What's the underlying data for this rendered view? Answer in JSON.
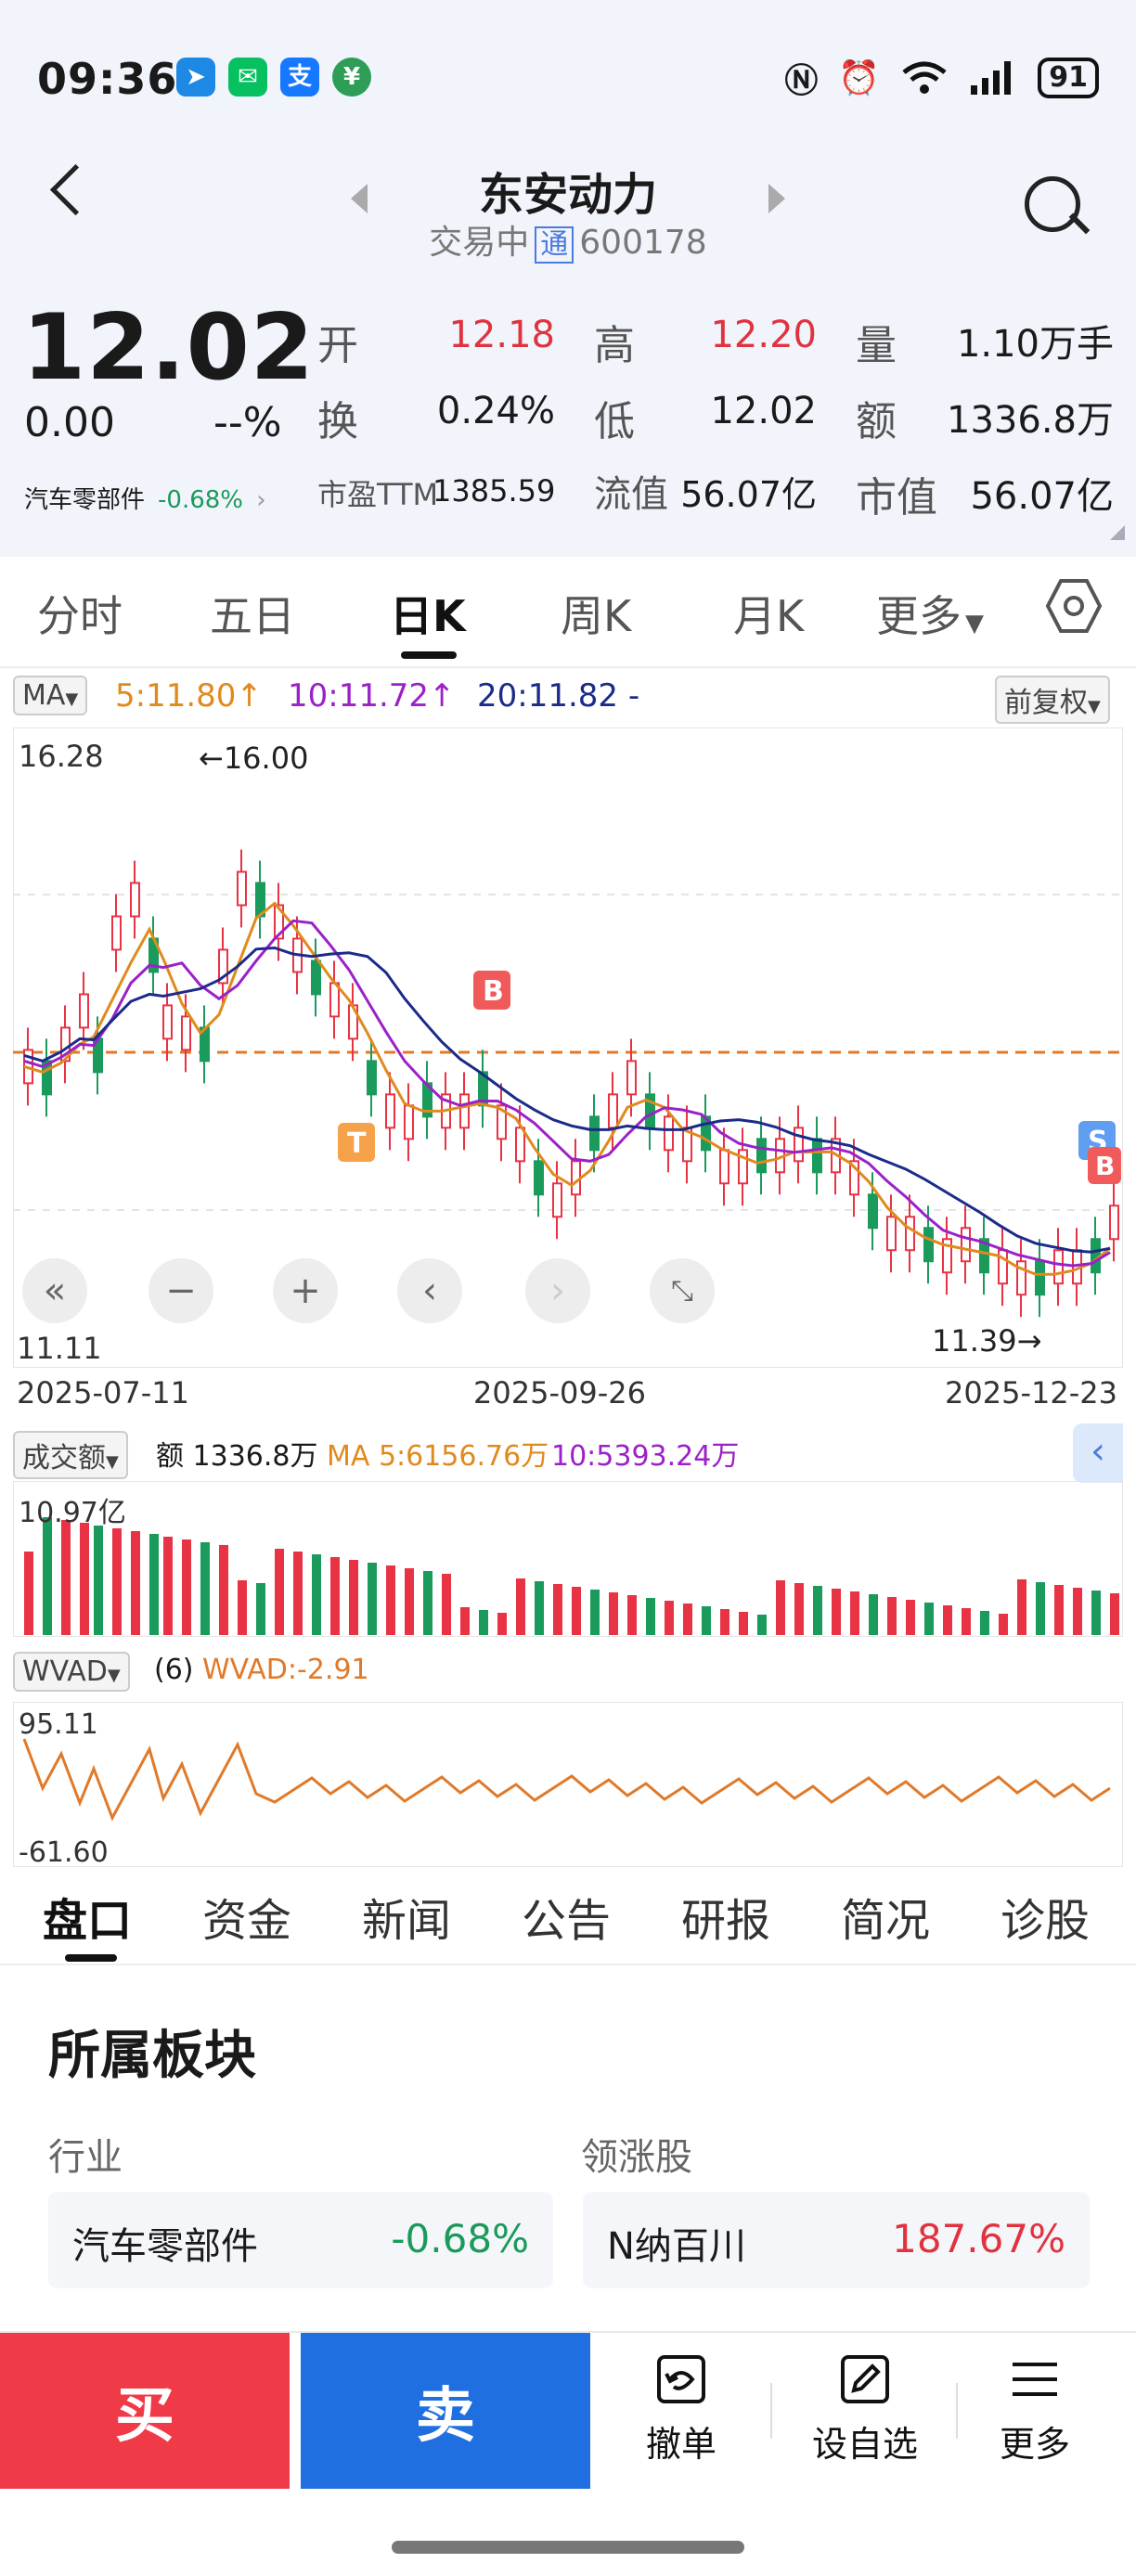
{
  "status": {
    "time": "09:36",
    "battery": "91",
    "apps": [
      {
        "icon": "paper-plane-app-icon",
        "glyph": "➤",
        "color": "#1e88e5"
      },
      {
        "icon": "wechat-app-icon",
        "glyph": "✉",
        "color": "#07c160"
      },
      {
        "icon": "alipay-app-icon",
        "glyph": "支",
        "color": "#1677ff"
      },
      {
        "icon": "bank-app-icon",
        "glyph": "¥",
        "color": "#2e9d57"
      }
    ]
  },
  "header": {
    "name": "东安动力",
    "trade_status": "交易中",
    "tong": "通",
    "code": "600178"
  },
  "quote": {
    "price": "12.02",
    "change": "0.00",
    "change_pct": "--%",
    "sector": "汽车零部件",
    "sector_change": "-0.68%",
    "fields": [
      {
        "label": "开",
        "value": "12.18",
        "color": "red"
      },
      {
        "label": "高",
        "value": "12.20",
        "color": "red"
      },
      {
        "label": "量",
        "value": "1.10万手",
        "color": "black"
      },
      {
        "label": "换",
        "value": "0.24%",
        "color": "black"
      },
      {
        "label": "低",
        "value": "12.02",
        "color": "black"
      },
      {
        "label": "额",
        "value": "1336.8万",
        "color": "black"
      },
      {
        "label": "市盈TTM",
        "value": "1385.59",
        "color": "black"
      },
      {
        "label": "流值",
        "value": "56.07亿",
        "color": "black"
      },
      {
        "label": "市值",
        "value": "56.07亿",
        "color": "black"
      }
    ]
  },
  "period_tabs": [
    "分时",
    "五日",
    "日K",
    "周K",
    "月K",
    "更多"
  ],
  "active_tab": "日K",
  "kline": {
    "indicator": "MA",
    "ma5": "5:11.80↑",
    "ma10": "10:11.72↑",
    "ma20": "20:11.82 -",
    "adjust": "前复权",
    "y_max": "16.28",
    "y_min": "11.11",
    "high_mark": "←16.00",
    "low_mark": "11.39→",
    "dates": [
      "2025-07-11",
      "2025-09-26",
      "2025-12-23"
    ],
    "markers": [
      "B",
      "T",
      "S",
      "B"
    ]
  },
  "volume": {
    "indicator": "成交额",
    "amount": "额 1336.8万",
    "ma5": "MA 5:6156.76万",
    "ma10": "10:5393.24万",
    "y_max": "10.97亿"
  },
  "wvad": {
    "indicator": "WVAD",
    "param": "(6)",
    "value": "WVAD:-2.91",
    "y_max": "95.11",
    "y_min": "-61.60"
  },
  "bottom_tabs": [
    "盘口",
    "资金",
    "新闻",
    "公告",
    "研报",
    "简况",
    "诊股"
  ],
  "sector_section": {
    "title": "所属板块",
    "industry_label": "行业",
    "leader_label": "领涨股",
    "industry_name": "汽车零部件",
    "industry_change": "-0.68%",
    "leader_name": "N纳百川",
    "leader_change": "187.67%"
  },
  "footer": {
    "buy": "买",
    "sell": "卖",
    "cancel": "撤单",
    "watch": "设自选",
    "more": "更多"
  },
  "chart_data": {
    "type": "candlestick",
    "y_range": [
      11.11,
      16.28
    ],
    "x_labels": [
      "2025-07-11",
      "2025-09-26",
      "2025-12-23"
    ],
    "high": 16.0,
    "low": 11.39,
    "series": [
      {
        "name": "MA5",
        "value": 11.8
      },
      {
        "name": "MA10",
        "value": 11.72
      },
      {
        "name": "MA20",
        "value": 11.82
      }
    ]
  }
}
